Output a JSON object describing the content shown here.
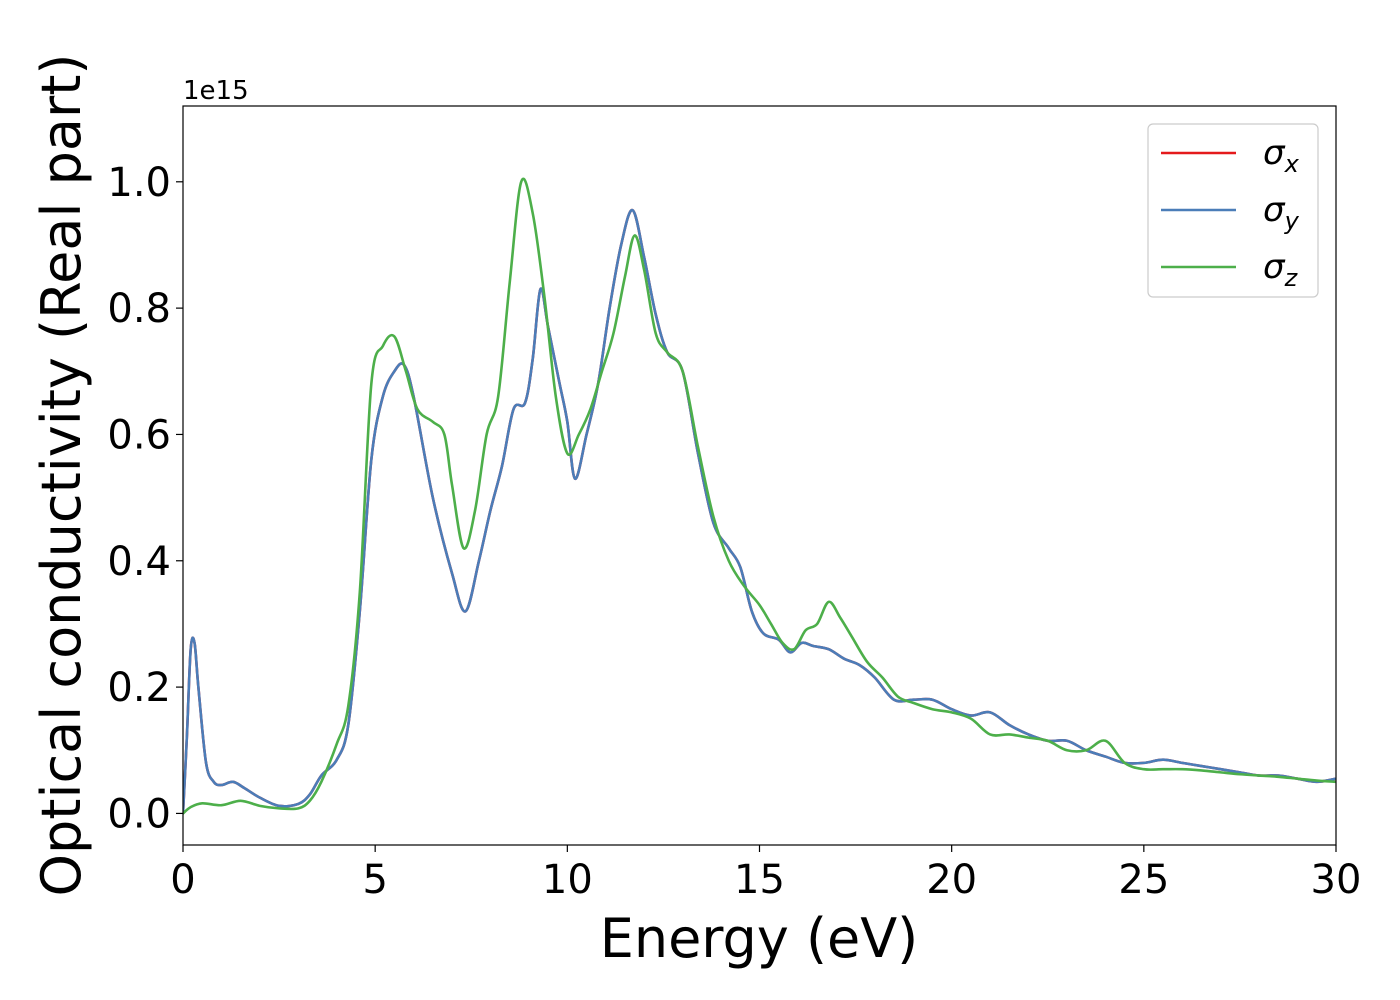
{
  "chart_data": {
    "type": "line",
    "title": "",
    "xlabel": "Energy (eV)",
    "ylabel": "Optical conductivity (Real part)",
    "offset_text": "1e15",
    "xlim": [
      0,
      30
    ],
    "ylim": [
      -0.05,
      1.12
    ],
    "xticks": [
      0,
      5,
      10,
      15,
      20,
      25,
      30
    ],
    "xtick_labels": [
      "0",
      "5",
      "10",
      "15",
      "20",
      "25",
      "30"
    ],
    "yticks": [
      0.0,
      0.2,
      0.4,
      0.6,
      0.8,
      1.0
    ],
    "ytick_labels": [
      "0.0",
      "0.2",
      "0.4",
      "0.6",
      "0.8",
      "1.0"
    ],
    "grid": false,
    "legend_position": "top-right",
    "series": [
      {
        "name": "σx",
        "symbol": "σ",
        "subscript": "x",
        "color": "#e41a1c",
        "x": [
          0,
          0.1,
          0.2,
          0.3,
          0.4,
          0.6,
          0.8,
          1.0,
          1.3,
          1.6,
          2.0,
          2.5,
          3.0,
          3.3,
          3.6,
          4.0,
          4.3,
          4.6,
          4.9,
          5.2,
          5.5,
          5.75,
          6.0,
          6.5,
          7.0,
          7.35,
          7.7,
          8.0,
          8.3,
          8.6,
          8.9,
          9.1,
          9.3,
          9.5,
          9.8,
          10.0,
          10.2,
          10.5,
          10.8,
          11.1,
          11.4,
          11.7,
          12.0,
          12.3,
          12.6,
          13.0,
          13.4,
          13.8,
          14.2,
          14.5,
          14.8,
          15.1,
          15.5,
          15.8,
          16.1,
          16.4,
          16.8,
          17.2,
          17.6,
          18.0,
          18.5,
          19.0,
          19.5,
          20.0,
          20.5,
          21.0,
          21.5,
          22.0,
          22.5,
          23.0,
          23.5,
          24.0,
          24.5,
          25.0,
          25.5,
          26.0,
          26.5,
          27.0,
          27.5,
          28.0,
          28.5,
          29.0,
          29.5,
          30.0
        ],
        "y": [
          0.0,
          0.12,
          0.26,
          0.27,
          0.2,
          0.08,
          0.05,
          0.045,
          0.05,
          0.04,
          0.025,
          0.012,
          0.015,
          0.03,
          0.06,
          0.085,
          0.14,
          0.32,
          0.56,
          0.66,
          0.7,
          0.71,
          0.66,
          0.5,
          0.38,
          0.32,
          0.4,
          0.48,
          0.55,
          0.64,
          0.65,
          0.72,
          0.83,
          0.77,
          0.68,
          0.62,
          0.53,
          0.6,
          0.68,
          0.8,
          0.9,
          0.955,
          0.88,
          0.79,
          0.73,
          0.7,
          0.57,
          0.46,
          0.42,
          0.39,
          0.32,
          0.285,
          0.275,
          0.255,
          0.27,
          0.265,
          0.26,
          0.245,
          0.235,
          0.215,
          0.18,
          0.18,
          0.18,
          0.165,
          0.155,
          0.16,
          0.14,
          0.125,
          0.115,
          0.115,
          0.1,
          0.09,
          0.08,
          0.08,
          0.085,
          0.08,
          0.075,
          0.07,
          0.065,
          0.06,
          0.06,
          0.055,
          0.05,
          0.055
        ]
      },
      {
        "name": "σy",
        "symbol": "σ",
        "subscript": "y",
        "color": "#4b7db8",
        "x": [
          0,
          0.1,
          0.2,
          0.3,
          0.4,
          0.6,
          0.8,
          1.0,
          1.3,
          1.6,
          2.0,
          2.5,
          3.0,
          3.3,
          3.6,
          4.0,
          4.3,
          4.6,
          4.9,
          5.2,
          5.5,
          5.75,
          6.0,
          6.5,
          7.0,
          7.35,
          7.7,
          8.0,
          8.3,
          8.6,
          8.9,
          9.1,
          9.3,
          9.5,
          9.8,
          10.0,
          10.2,
          10.5,
          10.8,
          11.1,
          11.4,
          11.7,
          12.0,
          12.3,
          12.6,
          13.0,
          13.4,
          13.8,
          14.2,
          14.5,
          14.8,
          15.1,
          15.5,
          15.8,
          16.1,
          16.4,
          16.8,
          17.2,
          17.6,
          18.0,
          18.5,
          19.0,
          19.5,
          20.0,
          20.5,
          21.0,
          21.5,
          22.0,
          22.5,
          23.0,
          23.5,
          24.0,
          24.5,
          25.0,
          25.5,
          26.0,
          26.5,
          27.0,
          27.5,
          28.0,
          28.5,
          29.0,
          29.5,
          30.0
        ],
        "y": [
          0.0,
          0.12,
          0.26,
          0.27,
          0.2,
          0.08,
          0.05,
          0.045,
          0.05,
          0.04,
          0.025,
          0.012,
          0.015,
          0.03,
          0.06,
          0.085,
          0.14,
          0.32,
          0.56,
          0.66,
          0.7,
          0.71,
          0.66,
          0.5,
          0.38,
          0.32,
          0.4,
          0.48,
          0.55,
          0.64,
          0.65,
          0.72,
          0.83,
          0.77,
          0.68,
          0.62,
          0.53,
          0.6,
          0.68,
          0.8,
          0.9,
          0.955,
          0.88,
          0.79,
          0.73,
          0.7,
          0.57,
          0.46,
          0.42,
          0.39,
          0.32,
          0.285,
          0.275,
          0.255,
          0.27,
          0.265,
          0.26,
          0.245,
          0.235,
          0.215,
          0.18,
          0.18,
          0.18,
          0.165,
          0.155,
          0.16,
          0.14,
          0.125,
          0.115,
          0.115,
          0.1,
          0.09,
          0.08,
          0.08,
          0.085,
          0.08,
          0.075,
          0.07,
          0.065,
          0.06,
          0.06,
          0.055,
          0.05,
          0.055
        ]
      },
      {
        "name": "σz",
        "symbol": "σ",
        "subscript": "z",
        "color": "#4daf4a",
        "x": [
          0,
          0.2,
          0.5,
          1.0,
          1.5,
          2.0,
          2.5,
          3.0,
          3.3,
          3.6,
          4.0,
          4.3,
          4.6,
          4.9,
          5.2,
          5.5,
          5.8,
          6.1,
          6.5,
          6.8,
          7.0,
          7.3,
          7.6,
          7.9,
          8.2,
          8.5,
          8.8,
          9.1,
          9.4,
          9.7,
          10.0,
          10.3,
          10.6,
          10.9,
          11.2,
          11.5,
          11.75,
          12.0,
          12.3,
          12.6,
          13.0,
          13.4,
          13.8,
          14.2,
          14.6,
          15.0,
          15.3,
          15.6,
          15.9,
          16.2,
          16.5,
          16.8,
          17.1,
          17.4,
          17.8,
          18.2,
          18.6,
          19.0,
          19.5,
          20.0,
          20.5,
          21.0,
          21.5,
          22.0,
          22.5,
          23.0,
          23.5,
          24.0,
          24.5,
          25.0,
          25.5,
          26.0,
          26.5,
          27.0,
          27.5,
          28.0,
          28.5,
          29.0,
          29.5,
          30.0
        ],
        "y": [
          0.0,
          0.01,
          0.016,
          0.013,
          0.02,
          0.012,
          0.008,
          0.008,
          0.02,
          0.05,
          0.11,
          0.17,
          0.35,
          0.68,
          0.74,
          0.755,
          0.7,
          0.64,
          0.62,
          0.6,
          0.52,
          0.42,
          0.48,
          0.6,
          0.66,
          0.84,
          1.0,
          0.95,
          0.82,
          0.66,
          0.57,
          0.6,
          0.64,
          0.7,
          0.76,
          0.85,
          0.915,
          0.86,
          0.76,
          0.73,
          0.7,
          0.58,
          0.47,
          0.4,
          0.36,
          0.33,
          0.3,
          0.27,
          0.26,
          0.29,
          0.3,
          0.335,
          0.31,
          0.28,
          0.24,
          0.215,
          0.185,
          0.175,
          0.165,
          0.16,
          0.15,
          0.125,
          0.125,
          0.12,
          0.115,
          0.1,
          0.1,
          0.115,
          0.08,
          0.07,
          0.07,
          0.07,
          0.068,
          0.065,
          0.062,
          0.06,
          0.058,
          0.055,
          0.052,
          0.05
        ]
      }
    ]
  }
}
